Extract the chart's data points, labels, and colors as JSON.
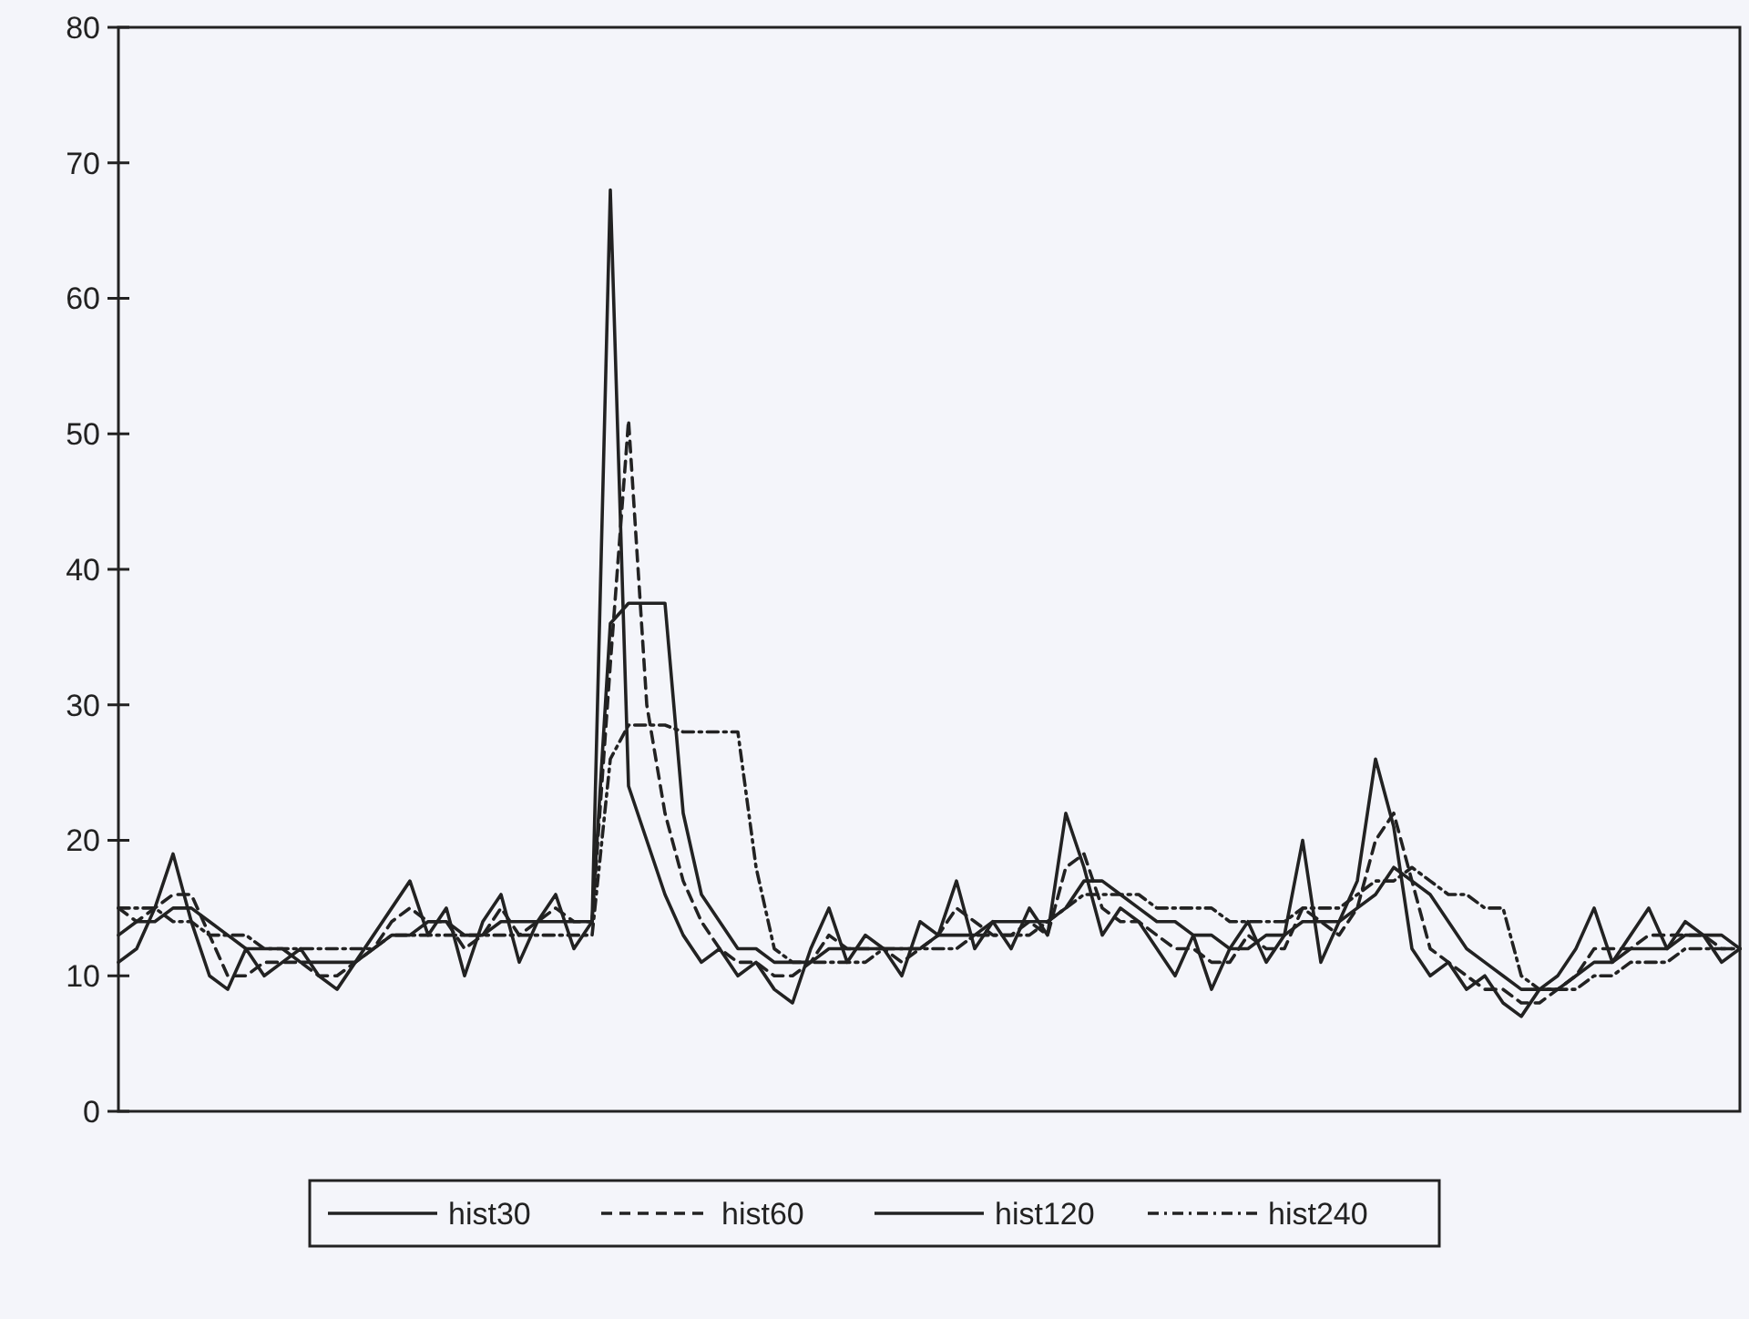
{
  "chart_data": {
    "type": "line",
    "categories": [
      null,
      null,
      null,
      null,
      null,
      null,
      null,
      null,
      null,
      null,
      null,
      null,
      null,
      null,
      null,
      null,
      null,
      null,
      null,
      null,
      null,
      null,
      null,
      null,
      null,
      null,
      null,
      null,
      null,
      null,
      null,
      null,
      null,
      null,
      null,
      null,
      null,
      null,
      null,
      null,
      null,
      null,
      null,
      null,
      null,
      null,
      null,
      null,
      null,
      null,
      null,
      null,
      null,
      null,
      null,
      null,
      null,
      null,
      null,
      null,
      null,
      null,
      null,
      null,
      null,
      null,
      null,
      null,
      null,
      null,
      null,
      null,
      null,
      null,
      null,
      null,
      null,
      null,
      null,
      null,
      null,
      null,
      null,
      null,
      null,
      null,
      null,
      null,
      null,
      null
    ],
    "series": [
      {
        "name": "hist30",
        "color": "#222222",
        "line_style": "solid",
        "values": [
          11,
          12,
          15,
          19,
          14,
          10,
          9,
          12,
          10,
          11,
          12,
          10,
          9,
          11,
          13,
          15,
          17,
          13,
          15,
          10,
          14,
          16,
          11,
          14,
          16,
          12,
          14,
          68,
          24,
          20,
          16,
          13,
          11,
          12,
          10,
          11,
          9,
          8,
          12,
          15,
          11,
          13,
          12,
          10,
          14,
          13,
          17,
          12,
          14,
          12,
          15,
          13,
          22,
          18,
          13,
          15,
          14,
          12,
          10,
          13,
          9,
          12,
          14,
          11,
          13,
          20,
          11,
          14,
          17,
          26,
          21,
          12,
          10,
          11,
          9,
          10,
          8,
          7,
          9,
          10,
          12,
          15,
          11,
          13,
          15,
          12,
          14,
          13,
          11,
          12
        ]
      },
      {
        "name": "hist60",
        "color": "#222222",
        "line_style": "dashed",
        "values": [
          15,
          14,
          15,
          16,
          16,
          13,
          10,
          10,
          11,
          11,
          11,
          10,
          10,
          11,
          12,
          14,
          15,
          14,
          14,
          12,
          13,
          15,
          13,
          14,
          15,
          14,
          14,
          33,
          51,
          30,
          22,
          17,
          14,
          12,
          11,
          11,
          10,
          10,
          11,
          13,
          12,
          12,
          12,
          11,
          12,
          13,
          15,
          14,
          13,
          13,
          14,
          13,
          18,
          19,
          15,
          14,
          14,
          13,
          12,
          12,
          11,
          11,
          13,
          12,
          12,
          15,
          14,
          13,
          15,
          20,
          22,
          17,
          12,
          11,
          10,
          9,
          9,
          8,
          8,
          9,
          10,
          12,
          12,
          12,
          13,
          13,
          13,
          13,
          12,
          12
        ]
      },
      {
        "name": "hist120",
        "color": "#222222",
        "line_style": "solid",
        "values": [
          13,
          14,
          14,
          15,
          15,
          14,
          13,
          12,
          12,
          12,
          11,
          11,
          11,
          11,
          12,
          13,
          13,
          14,
          14,
          13,
          13,
          14,
          14,
          14,
          14,
          14,
          14,
          36,
          37.5,
          37.5,
          37.5,
          22,
          16,
          14,
          12,
          12,
          11,
          11,
          11,
          12,
          12,
          12,
          12,
          12,
          12,
          13,
          13,
          13,
          14,
          14,
          14,
          14,
          15,
          17,
          17,
          16,
          15,
          14,
          14,
          13,
          13,
          12,
          12,
          13,
          13,
          14,
          14,
          14,
          15,
          16,
          18,
          17,
          16,
          14,
          12,
          11,
          10,
          9,
          9,
          9,
          10,
          11,
          11,
          12,
          12,
          12,
          13,
          13,
          13,
          12
        ]
      },
      {
        "name": "hist240",
        "color": "#222222",
        "line_style": "dashdot",
        "values": [
          15,
          15,
          15,
          14,
          14,
          13,
          13,
          13,
          12,
          12,
          12,
          12,
          12,
          12,
          12,
          13,
          13,
          13,
          13,
          13,
          13,
          13,
          13,
          13,
          13,
          13,
          13,
          26,
          28.5,
          28.5,
          28.5,
          28,
          28,
          28,
          28,
          18,
          12,
          11,
          11,
          11,
          11,
          11,
          12,
          12,
          12,
          12,
          12,
          13,
          13,
          13,
          13,
          14,
          15,
          16,
          16,
          16,
          16,
          15,
          15,
          15,
          15,
          14,
          14,
          14,
          14,
          15,
          15,
          15,
          16,
          17,
          17,
          18,
          17,
          16,
          16,
          15,
          15,
          10,
          9,
          9,
          9,
          10,
          10,
          11,
          11,
          11,
          12,
          12,
          12,
          12
        ]
      }
    ],
    "ylim": [
      0,
      80
    ],
    "yticks": [
      0,
      10,
      20,
      30,
      40,
      50,
      60,
      70,
      80
    ],
    "tick_labels": "y",
    "legend": "bottom",
    "grid": false
  }
}
